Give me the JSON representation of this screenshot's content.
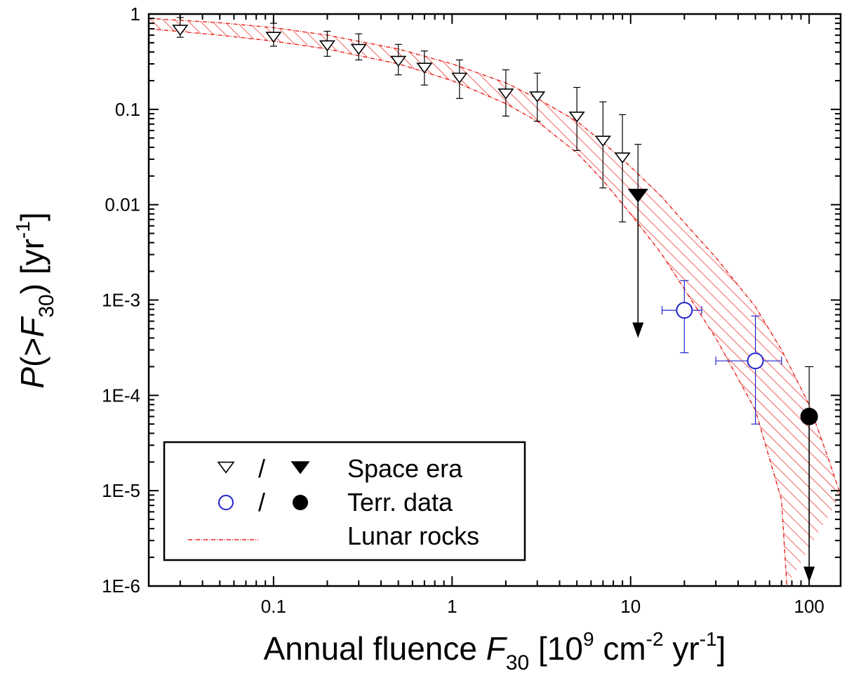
{
  "chart_data": {
    "type": "scatter",
    "xscale": "log",
    "yscale": "log",
    "xlim": [
      0.02,
      150
    ],
    "ylim": [
      1e-06,
      1
    ],
    "xlabel": {
      "prefix": "Annual fluence ",
      "var": "F",
      "var_sub": "30",
      "unit_open": " [10",
      "unit_sup1": "9",
      "unit_mid1": " cm",
      "unit_sup2": "-2",
      "unit_mid2": " yr",
      "unit_sup3": "-1",
      "unit_close": "]"
    },
    "ylabel": {
      "var": "P",
      "open": "(>",
      "var2": "F",
      "sub": "30",
      "close": ") [yr",
      "sup": "-1",
      "end": "]"
    },
    "x_ticks": [
      {
        "value": 0.1,
        "label": "0.1"
      },
      {
        "value": 1,
        "label": "1"
      },
      {
        "value": 10,
        "label": "10"
      },
      {
        "value": 100,
        "label": "100"
      }
    ],
    "y_ticks": [
      {
        "value": 1,
        "label": "1"
      },
      {
        "value": 0.1,
        "label": "0.1"
      },
      {
        "value": 0.01,
        "label": "0.01"
      },
      {
        "value": 0.001,
        "label": "1E-3"
      },
      {
        "value": 0.0001,
        "label": "1E-4"
      },
      {
        "value": 1e-05,
        "label": "1E-5"
      },
      {
        "value": 1e-06,
        "label": "1E-6"
      }
    ],
    "series": [
      {
        "name": "Space era",
        "marker": "triangle-down-open",
        "color": "#000000",
        "points": [
          {
            "x": 0.03,
            "y": 0.7,
            "ylo": 0.57,
            "yhi": 0.92
          },
          {
            "x": 0.1,
            "y": 0.59,
            "ylo": 0.46,
            "yhi": 0.8
          },
          {
            "x": 0.2,
            "y": 0.48,
            "ylo": 0.36,
            "yhi": 0.66
          },
          {
            "x": 0.3,
            "y": 0.44,
            "ylo": 0.33,
            "yhi": 0.62
          },
          {
            "x": 0.5,
            "y": 0.33,
            "ylo": 0.23,
            "yhi": 0.48
          },
          {
            "x": 0.7,
            "y": 0.28,
            "ylo": 0.18,
            "yhi": 0.41
          },
          {
            "x": 1.1,
            "y": 0.22,
            "ylo": 0.13,
            "yhi": 0.33
          },
          {
            "x": 2.0,
            "y": 0.15,
            "ylo": 0.085,
            "yhi": 0.26
          },
          {
            "x": 3.0,
            "y": 0.14,
            "ylo": 0.075,
            "yhi": 0.24
          },
          {
            "x": 5.0,
            "y": 0.086,
            "ylo": 0.037,
            "yhi": 0.17
          },
          {
            "x": 7.0,
            "y": 0.048,
            "ylo": 0.015,
            "yhi": 0.12
          },
          {
            "x": 9.0,
            "y": 0.032,
            "ylo": 0.0066,
            "yhi": 0.088
          }
        ]
      },
      {
        "name": "Space era (upper limit)",
        "marker": "triangle-down-filled",
        "color": "#000000",
        "points": [
          {
            "x": 11,
            "y": 0.013,
            "yhi": 0.043,
            "arrow_to": 0.0004
          }
        ]
      },
      {
        "name": "Terr. data",
        "marker": "circle-open",
        "color": "#2222cc",
        "points": [
          {
            "x": 20,
            "y": 0.00078,
            "ylo": 0.00028,
            "yhi": 0.0016,
            "xlo": 15,
            "xhi": 25
          },
          {
            "x": 50,
            "y": 0.00023,
            "ylo": 5e-05,
            "yhi": 0.00068,
            "xlo": 30,
            "xhi": 70
          }
        ]
      },
      {
        "name": "Terr. data (upper limit)",
        "marker": "circle-filled",
        "color": "#000000",
        "points": [
          {
            "x": 100,
            "y": 6e-05,
            "yhi": 0.0002,
            "arrow_to": 1.1e-06
          }
        ]
      }
    ],
    "band": {
      "name": "Lunar rocks",
      "color": "#e8201a",
      "upper": [
        [
          0.02,
          0.9
        ],
        [
          0.05,
          0.81
        ],
        [
          0.1,
          0.72
        ],
        [
          0.2,
          0.6
        ],
        [
          0.5,
          0.43
        ],
        [
          1,
          0.3
        ],
        [
          2,
          0.19
        ],
        [
          3,
          0.13
        ],
        [
          5,
          0.075
        ],
        [
          7,
          0.045
        ],
        [
          10,
          0.025
        ],
        [
          15,
          0.012
        ],
        [
          20,
          0.0065
        ],
        [
          30,
          0.0028
        ],
        [
          50,
          0.00085
        ],
        [
          70,
          0.0003
        ],
        [
          100,
          8e-05
        ],
        [
          130,
          2e-05
        ],
        [
          150,
          9e-06
        ]
      ],
      "lower": [
        [
          0.02,
          0.7
        ],
        [
          0.05,
          0.6
        ],
        [
          0.1,
          0.52
        ],
        [
          0.2,
          0.43
        ],
        [
          0.5,
          0.3
        ],
        [
          1,
          0.2
        ],
        [
          2,
          0.115
        ],
        [
          3,
          0.075
        ],
        [
          5,
          0.035
        ],
        [
          7,
          0.018
        ],
        [
          10,
          0.008
        ],
        [
          15,
          0.003
        ],
        [
          20,
          0.0013
        ],
        [
          30,
          0.0004
        ],
        [
          50,
          7e-05
        ],
        [
          70,
          8e-06
        ],
        [
          75,
          1e-06
        ]
      ]
    },
    "legend": {
      "placement": "bottom-left",
      "separator": "/",
      "entries": [
        {
          "label": "Space era",
          "markers": [
            "triangle-down-open",
            "triangle-down-filled"
          ]
        },
        {
          "label": "Terr. data",
          "markers": [
            "circle-open",
            "circle-filled"
          ]
        },
        {
          "label": "Lunar rocks",
          "markers": [
            "dash-dot-line"
          ]
        }
      ]
    },
    "colors": {
      "band": "#e8201a",
      "terr_open": "#2222cc",
      "black": "#000000"
    }
  }
}
